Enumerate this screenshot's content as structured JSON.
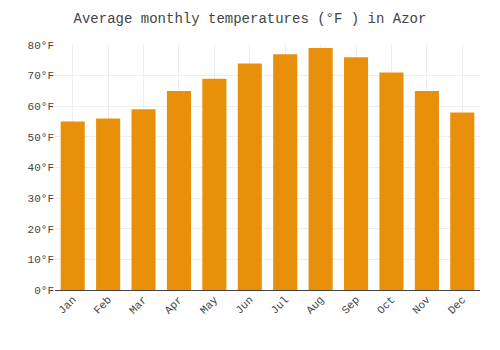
{
  "chart_data": {
    "type": "bar",
    "title": "Average monthly temperatures (°F ) in Azor",
    "categories": [
      "Jan",
      "Feb",
      "Mar",
      "Apr",
      "May",
      "Jun",
      "Jul",
      "Aug",
      "Sep",
      "Oct",
      "Nov",
      "Dec"
    ],
    "values": [
      55,
      56,
      59,
      65,
      69,
      74,
      77,
      79,
      76,
      71,
      65,
      58
    ],
    "color": "#E8900A",
    "ylim": [
      0,
      80
    ],
    "yticks": [
      {
        "value": 0,
        "label": "0°F"
      },
      {
        "value": 10,
        "label": "10°F"
      },
      {
        "value": 20,
        "label": "20°F"
      },
      {
        "value": 30,
        "label": "30°F"
      },
      {
        "value": 40,
        "label": "40°F"
      },
      {
        "value": 50,
        "label": "50°F"
      },
      {
        "value": 60,
        "label": "60°F"
      },
      {
        "value": 70,
        "label": "70°F"
      },
      {
        "value": 80,
        "label": "80°F"
      }
    ],
    "grid": true
  }
}
